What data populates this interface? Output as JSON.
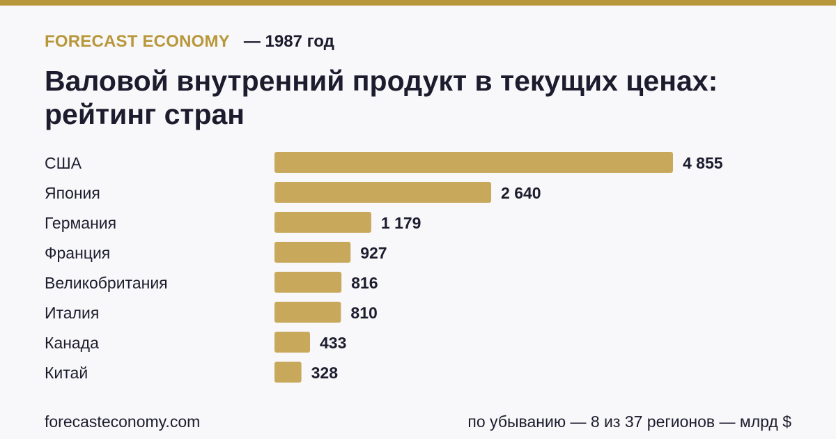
{
  "header": {
    "brand": "FORECAST ECONOMY",
    "year": "— 1987 год"
  },
  "colors": {
    "accent": "#b8973a",
    "bar": "#c8a95c",
    "text": "#1c1c2e",
    "background": "#f8f8fa"
  },
  "footer": {
    "site": "forecasteconomy.com",
    "note": "по убыванию — 8 из 37 регионов — млрд $"
  },
  "chart_data": {
    "type": "bar",
    "orientation": "horizontal",
    "title": "Валовой внутренний продукт в текущих ценах: рейтинг стран",
    "categories": [
      "США",
      "Япония",
      "Германия",
      "Франция",
      "Великобритания",
      "Италия",
      "Канада",
      "Китай"
    ],
    "values": [
      4855,
      2640,
      1179,
      927,
      816,
      810,
      433,
      328
    ],
    "value_labels": [
      "4 855",
      "2 640",
      "1 179",
      "927",
      "816",
      "810",
      "433",
      "328"
    ],
    "grid": false,
    "legend": false
  }
}
